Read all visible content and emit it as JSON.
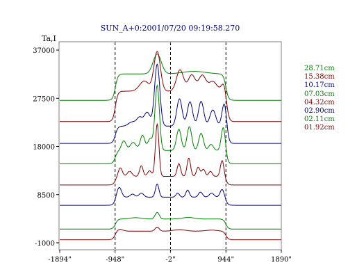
{
  "chart_data": {
    "type": "line",
    "title": "SUN_A+0:2001/07/20 09:19:58.270",
    "ylabel": "Ta,I",
    "xlabel": "",
    "xlim": [
      -1894,
      1890
    ],
    "ylim": [
      -1000,
      37000
    ],
    "x_ticks": [
      {
        "value": -1894,
        "label": "-1894\""
      },
      {
        "value": -948,
        "label": "-948\""
      },
      {
        "value": -2,
        "label": "-2\""
      },
      {
        "value": 944,
        "label": "944\""
      },
      {
        "value": 1890,
        "label": "1890\""
      }
    ],
    "y_ticks": [
      {
        "value": 37000,
        "label": "37000"
      },
      {
        "value": 27500,
        "label": "27500"
      },
      {
        "value": 18000,
        "label": "18000"
      },
      {
        "value": 8500,
        "label": "8500"
      },
      {
        "value": -1000,
        "label": "-1000"
      }
    ],
    "reference_lines_x": [
      -948,
      -2,
      944
    ],
    "series": [
      {
        "name": "28.71cm",
        "color": "#008000",
        "baseline": 27100,
        "plateau": 5200,
        "peaks": [
          [
            -230,
            3900,
            70
          ],
          [
            400,
            500,
            200
          ]
        ]
      },
      {
        "name": "15.38cm",
        "color": "#800000",
        "baseline": 22900,
        "plateau": 6000,
        "peaks": [
          [
            -230,
            7800,
            55
          ],
          [
            -450,
            2000,
            80
          ],
          [
            160,
            4200,
            60
          ],
          [
            360,
            3200,
            60
          ],
          [
            540,
            3100,
            60
          ],
          [
            720,
            1900,
            70
          ],
          [
            920,
            2200,
            45
          ]
        ]
      },
      {
        "name": "10.17cm",
        "color": "#000080",
        "baseline": 18600,
        "plateau": 3400,
        "peaks": [
          [
            -230,
            12200,
            45
          ],
          [
            -400,
            2700,
            50
          ],
          [
            -530,
            1700,
            50
          ],
          [
            -660,
            800,
            60
          ],
          [
            150,
            5400,
            45
          ],
          [
            330,
            4800,
            45
          ],
          [
            520,
            4900,
            45
          ],
          [
            720,
            3200,
            50
          ],
          [
            920,
            5100,
            40
          ]
        ]
      },
      {
        "name": "07.03cm",
        "color": "#008000",
        "baseline": 14600,
        "plateau": 2600,
        "peaks": [
          [
            -230,
            12800,
            38
          ],
          [
            -480,
            3000,
            40
          ],
          [
            -350,
            2300,
            40
          ],
          [
            -640,
            1600,
            50
          ],
          [
            -800,
            1900,
            40
          ],
          [
            140,
            4200,
            40
          ],
          [
            320,
            4700,
            40
          ],
          [
            520,
            3400,
            40
          ],
          [
            690,
            1200,
            40
          ],
          [
            900,
            4800,
            35
          ]
        ]
      },
      {
        "name": "04.32cm",
        "color": "#800000",
        "baseline": 10400,
        "plateau": 1700,
        "peaks": [
          [
            -230,
            10300,
            30
          ],
          [
            -500,
            2100,
            30
          ],
          [
            -360,
            1100,
            35
          ],
          [
            -700,
            1000,
            40
          ],
          [
            -860,
            1700,
            35
          ],
          [
            140,
            2500,
            30
          ],
          [
            310,
            3600,
            30
          ],
          [
            470,
            1800,
            30
          ],
          [
            560,
            1400,
            30
          ],
          [
            680,
            1000,
            30
          ],
          [
            880,
            3200,
            30
          ]
        ]
      },
      {
        "name": "02.90cm",
        "color": "#000080",
        "baseline": 6400,
        "plateau": 1600,
        "peaks": [
          [
            -230,
            2600,
            30
          ],
          [
            -880,
            2000,
            40
          ],
          [
            -500,
            800,
            40
          ],
          [
            -650,
            600,
            40
          ],
          [
            120,
            800,
            30
          ],
          [
            290,
            1400,
            30
          ],
          [
            510,
            1000,
            35
          ],
          [
            700,
            800,
            40
          ],
          [
            880,
            1600,
            35
          ]
        ]
      },
      {
        "name": "02.11cm",
        "color": "#008000",
        "baseline": 1700,
        "plateau": 2000,
        "peaks": [
          [
            -230,
            1300,
            35
          ],
          [
            -600,
            250,
            100
          ],
          [
            300,
            300,
            100
          ]
        ]
      },
      {
        "name": "01.92cm",
        "color": "#800000",
        "baseline": -400,
        "plateau": 1700,
        "peaks": [
          [
            -230,
            800,
            35
          ],
          [
            -880,
            400,
            60
          ],
          [
            150,
            300,
            100
          ],
          [
            700,
            200,
            100
          ]
        ]
      }
    ]
  }
}
